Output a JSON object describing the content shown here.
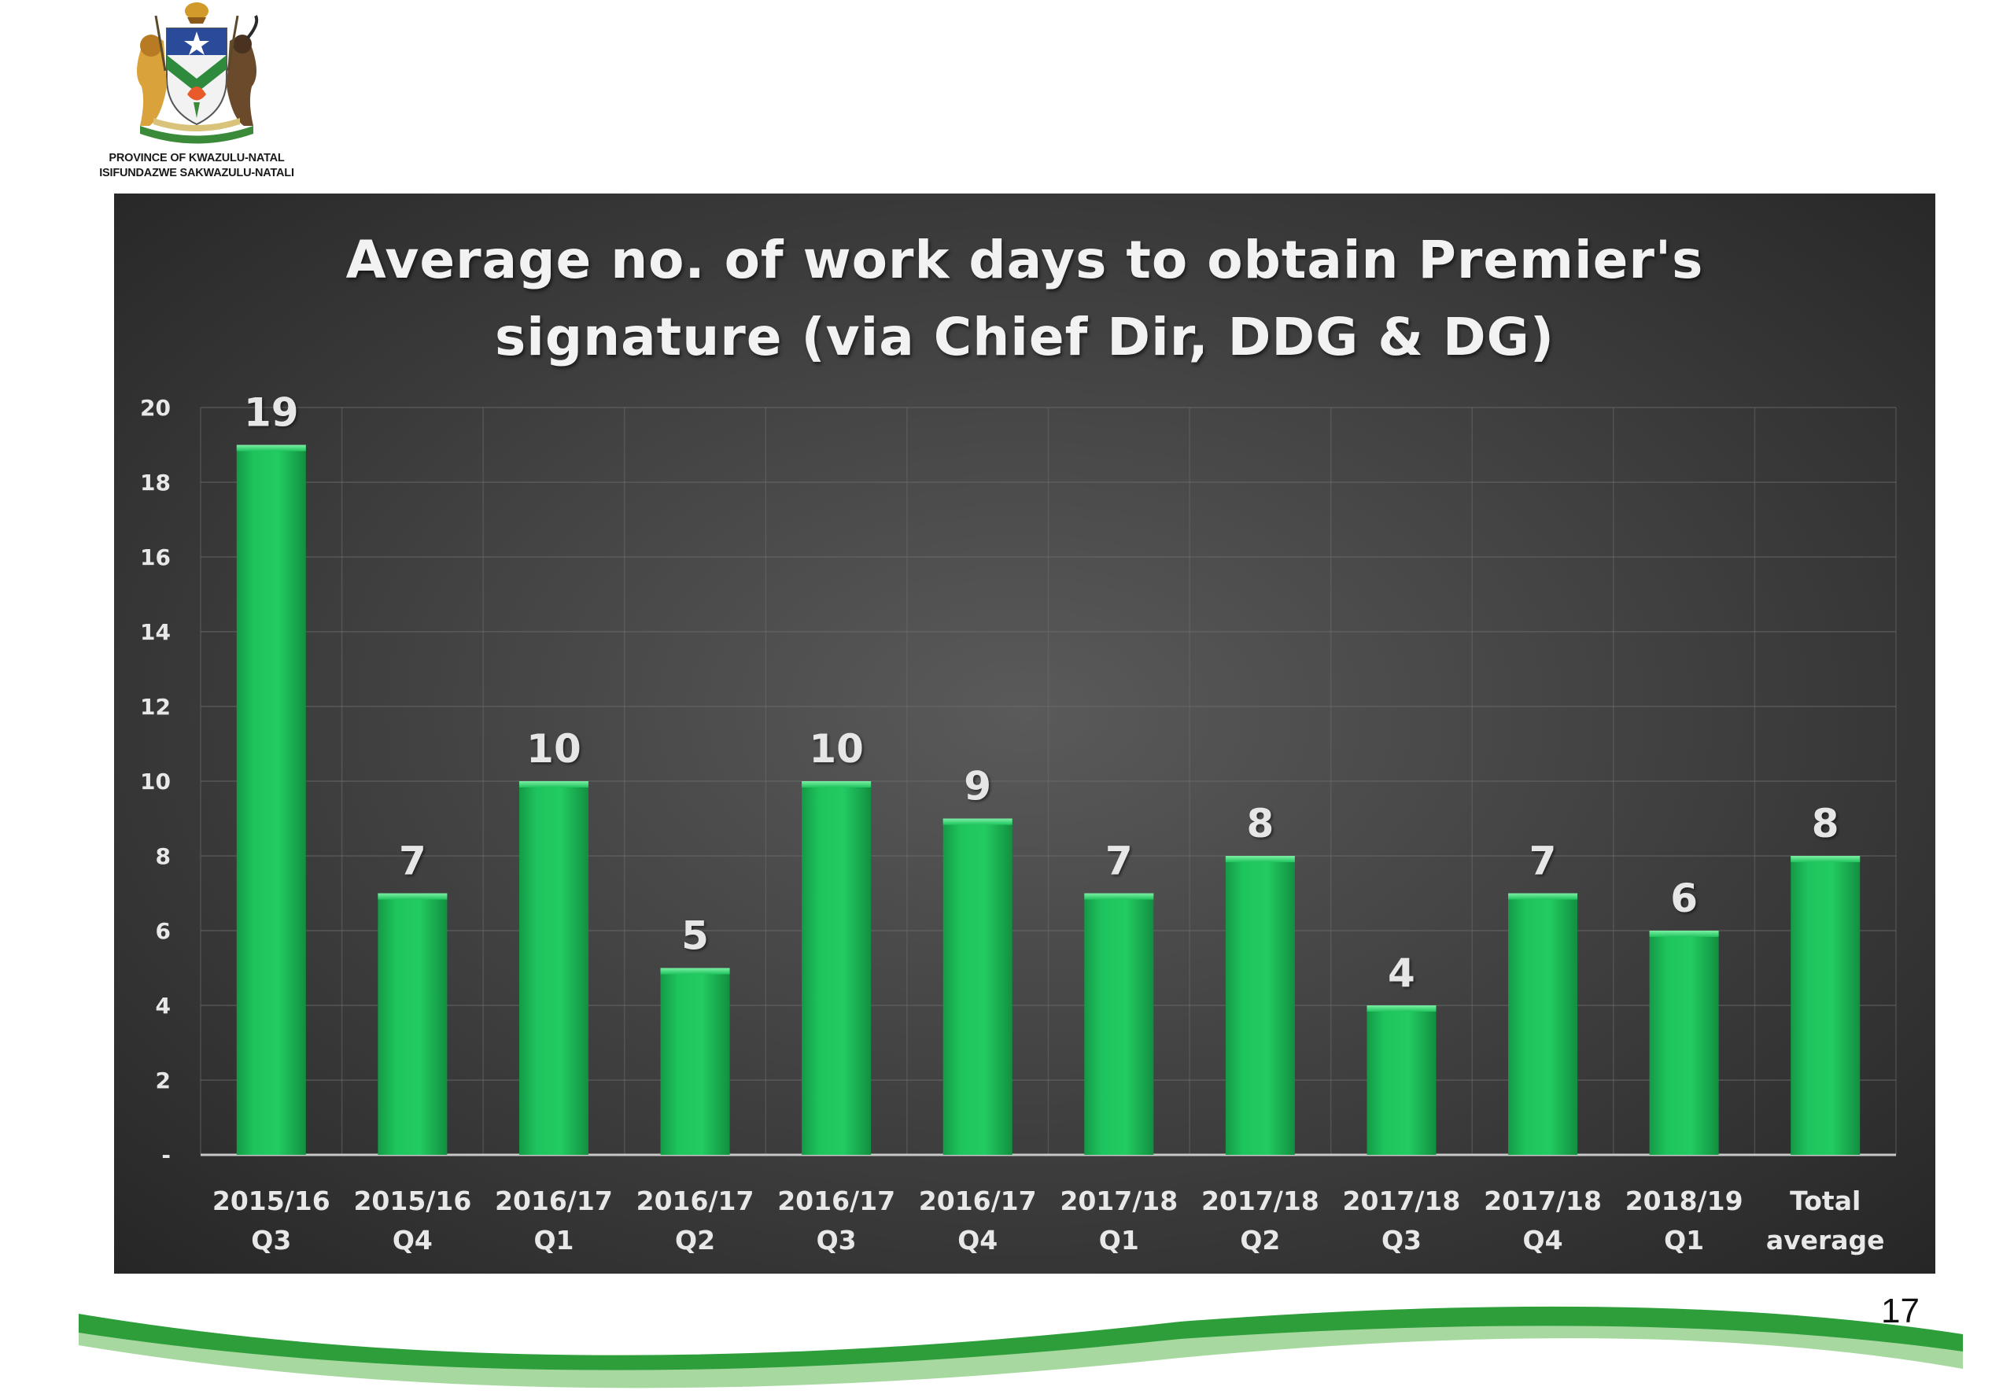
{
  "logo": {
    "line1": "PROVINCE OF KWAZULU-NATAL",
    "line2": "ISIFUNDAZWE SAKWAZULU-NATALI"
  },
  "page_number": "17",
  "colors": {
    "bar": "#1ec45d",
    "chart_background": "#3b3b3b",
    "text": "#e8e8e8",
    "footer_green": "#2e9e3a"
  },
  "chart_data": {
    "type": "bar",
    "title": "Average no. of work days to obtain Premier's signature (via Chief Dir, DDG & DG)",
    "title_lines": [
      "Average no. of work days to obtain Premier's",
      "signature (via Chief Dir, DDG & DG)"
    ],
    "categories": [
      [
        "2015/16",
        "Q3"
      ],
      [
        "2015/16",
        "Q4"
      ],
      [
        "2016/17",
        "Q1"
      ],
      [
        "2016/17",
        "Q2"
      ],
      [
        "2016/17",
        "Q3"
      ],
      [
        "2016/17",
        "Q4"
      ],
      [
        "2017/18",
        "Q1"
      ],
      [
        "2017/18",
        "Q2"
      ],
      [
        "2017/18",
        "Q3"
      ],
      [
        "2017/18",
        "Q4"
      ],
      [
        "2018/19",
        "Q1"
      ],
      [
        "Total",
        "average"
      ]
    ],
    "values": [
      19,
      7,
      10,
      5,
      10,
      9,
      7,
      8,
      4,
      7,
      6,
      8
    ],
    "data_labels": [
      "19",
      "7",
      "10",
      "5",
      "10",
      "9",
      "7",
      "8",
      "4",
      "7",
      "6",
      "8"
    ],
    "ylim": [
      0,
      20
    ],
    "yticks": [
      0,
      2,
      4,
      6,
      8,
      10,
      12,
      14,
      16,
      18,
      20
    ],
    "ytick_labels": [
      "-",
      "2",
      "4",
      "6",
      "8",
      "10",
      "12",
      "14",
      "16",
      "18",
      "20"
    ],
    "xlabel": "",
    "ylabel": "",
    "grid": true,
    "legend": "none"
  }
}
